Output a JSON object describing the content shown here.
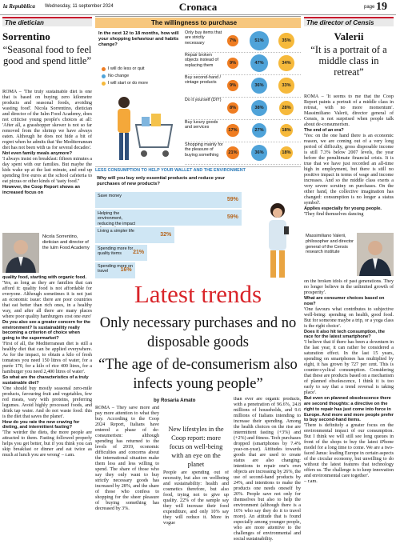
{
  "header": {
    "newspaper": "la Repubblica",
    "date": "Wednesday, 11 september 2024",
    "section": "Cronaca",
    "page_label": "page",
    "page_number": "19"
  },
  "left_interview": {
    "label": "The dietician",
    "name": "Sorrentino",
    "quote": "“Seasonal food to feel good and spend little”",
    "body_top": [
      {
        "p": "ROMA – 'The truly sustainable diet is one that is based on buying zero kilometre products and seasonal foods, avoiding wasting food'. Nicola Sorrentino, dietician and director of the Iulm Food Academy, does not criticise young people's choices at all: 'After all, a grasshopper skewer is not so far removed from the shrimp we have always eaten. Although he does not hide a bit of regret when he admits that 'the Mediterranean diet has not been with us for several decades'."
      },
      {
        "q": "Not even family meals anymore?"
      },
      {
        "p": "'I always insist on breakfast: fifteen minutes a day spent with our families. But maybe the kids wake up at the last minute, and end up spending five euros at the school cafeteria to eat pizzas or other kinds of 'tasty food.''"
      },
      {
        "q": "However, the Coop Report shows an increased focus on"
      }
    ],
    "photo_caption": "Nicola Sorrentino, dietician and director of the Iulm Food Academy",
    "body_bottom": [
      {
        "q": "quality food, starting with organic food."
      },
      {
        "p": "'Yes, as long as they are families that can afford it: quality food is not affordable for everyone. Although sometimes it is not just an economic issue: there are poor countries that eat better than rich ones, in a healthy way, and after all there are many places where poor quality hamburgers cost one euro'"
      },
      {
        "q": "Do you also see a greater concern for the environment? Is sustainability really becoming a criterion of choice when going to the supermarket?"
      },
      {
        "p": "'First of all, the Mediterranean diet is still a healthy diet that can be applied everywhere. As for the impact, to obtain a kilo of fresh tomatoes you need 150 litres of water, for a purée 170, for a kilo of rice 400 litres, for a hamburger you need 2,400 litres of water'."
      },
      {
        "q": "So what are the characteristics of a truly sustainable diet?"
      },
      {
        "p": "'One should buy mostly seasonal zero-mile products, favouring fruit and vegetables, few red meats, vary with proteins, preferring legumes. Avoid highly processed foods, and drink tap water. And do not waste food: this is the diet that saves the planet'."
      },
      {
        "q": "How do you rate the new craving for dieting, and intermittent fasting?"
      },
      {
        "p": "'The weirder the diets, the more people are attracted to them. Fasting followed properly helps you get better, but if you think you can skip breakfast or dinner and eat twice as much at lunch you are wrong' – r.am."
      }
    ]
  },
  "right_interview": {
    "label": "The director of Censis",
    "name": "Valerii",
    "quote": "“It is a portrait of a middle class in retreat”",
    "body_top": [
      {
        "p": "ROMA – 'It seems to me that the Coop Report paints a portrait of a middle class in retreat, with no more momentum'. Massimiliano Valerii, director general of Censis, is not surprised when people talk about de-consumerism."
      },
      {
        "q": "The end of an era?"
      },
      {
        "p": "'Yes: on the one hand there is an economic reason, we are coming out of a very long period of difficulty, gross disposable income is still 7.3% below 2007 levels, the year before the penultimate financial crisis. It is true that we have just recorded an all-time high in employment, but there is still no positive impact in terms of wage and income increases. And so the middle class exerts a very severe scrutiny on purchases. On the other hand, the collective imagination has changed: consumption is no longer a status symbol'."
      },
      {
        "q": "Applies especially for young people."
      },
      {
        "p": "'They find themselves dancing"
      }
    ],
    "photo_caption": "Massimiliano Valerii, philosopher and director general of the Censis research institute",
    "body_bottom": [
      {
        "p": "on the broken idols of past generations. They no longer believe in the unlimited growth of prosperity'."
      },
      {
        "q": "What are consumer choices based on now?"
      },
      {
        "p": "'One favours what contributes to subjective well-being: spending on health, good food. But for someone maybe a trip, or a yoga class is the right choice'."
      },
      {
        "q": "Does it also hit tech consumption, the race for the latest smartphone?"
      },
      {
        "p": "'I believe that if there has been a downturn in the last year, it can rather be considered a saturation effect. In the last 15 years, spending on smartphones has multiplied by eight, it has grown by 727 per cent. This is counter-cyclical consumption. Considering that these are products based on a mechanism of planned obsolescence, I think it is too early to say that a trend reversal is taking place'."
      },
      {
        "q": "But even on planned obsolescence there are second thoughts: a directive on the right to repair has just come into force in Europe. And more and more people prefer to buy second-hand items."
      },
      {
        "p": "'There is definitely a greater focus on the environmental impact of our consumption. But I think we will still see long queues in front of the shops to buy the latest iPhone model for a long time to come. We are a two-faced Janus: leading Europe in certain aspects of the circular economy, but unwilling to do without the latest features that technology offers us. The challenge is to keep innovation and environmental care together'."
      },
      {
        "p": "– r.am."
      }
    ]
  },
  "infographic": {
    "title": "The willingness to purchase",
    "question": "In the next 12 to 18 months, how will your shopping behaviour and habits change?",
    "legend": [
      "I will do less or quit",
      "No change",
      "I will start or do more"
    ],
    "colors": [
      "#ef7d22",
      "#4fa3d9",
      "#f6b93b"
    ],
    "rows": [
      {
        "label": "Only buy items that are strictly necessary",
        "values": [
          7,
          51,
          35
        ],
        "value_labels": [
          "7%",
          "51%",
          "35%"
        ]
      },
      {
        "label": "Repair broken objects instead of replacing them",
        "values": [
          9,
          47,
          34
        ],
        "value_labels": [
          "9%",
          "47%",
          "34%"
        ]
      },
      {
        "label": "Buy second-hand / vintage products",
        "values": [
          9,
          36,
          33
        ],
        "value_labels": [
          "9%",
          "36%",
          "33%"
        ]
      },
      {
        "label": "Do it yourself (DIY)",
        "values": [
          8,
          38,
          28
        ],
        "value_labels": [
          "8%",
          "38%",
          "28%"
        ]
      },
      {
        "label": "Buy luxury goods and services",
        "values": [
          17,
          27,
          18
        ],
        "value_labels": [
          "17%",
          "27%",
          "18%"
        ]
      },
      {
        "label": "Shopping mainly for the pleasure of buying something",
        "values": [
          21,
          36,
          18
        ],
        "value_labels": [
          "21%",
          "36%",
          "18%"
        ]
      }
    ],
    "caption": "LESS CONSUMPTION TO HELP YOUR WALLET AND THE ENVIRONMENT",
    "reasons": {
      "question": "Why will you buy only essential products and reduce your purchases of new products?",
      "color": "#cfe6f4",
      "bars": [
        {
          "label": "Save money",
          "value": 59,
          "value_label": "59%"
        },
        {
          "label": "Helping the environment, reducing the impact of my actions",
          "value": 59,
          "value_label": "59%"
        },
        {
          "label": "Living a simpler life",
          "value": 32,
          "value_label": "32%"
        },
        {
          "label": "Spending more for quality items",
          "value": 21,
          "value_label": "21%"
        },
        {
          "label": "Spending more on travel",
          "value": 16,
          "value_label": "16%"
        }
      ]
    }
  },
  "article": {
    "kicker": "Latest trends",
    "headline": "Only necessary purchases and no disposable goods",
    "subheadline": "“The age of de-consumerism also infects young people”",
    "byline": "by Rosaria Amato",
    "pull_quote": "New lifestyles in the Coop report: more focus on well-being with an eye on the planet",
    "columns": [
      "ROMA – They save more and pay more attention to what they buy. According to the Coop 2024 Report, Italians have entered a phase of de-consumerism: although spending has returned to the levels of 2019, economic difficulties and concerns about the international situation make them less and less willing to spend. The share of those who say they only want to buy strictly necessary goods has increased by 28%, and the share of those who confess to shopping for the sheer pleasure of buying something has decreased by 3%.",
      "People are spending out of necessity, but also on wellbeing and sustainability: health and cosmetics therefore, but also food, trying not to give up quality. 22% of the sample say they will increase their food expenditure, and only 10% say they will reduce it. More in vogue",
      "than ever are organic products, with a penetration of 96.6%, 24.8 millions of households, and 9.6 millions of Italians intending to increase their spending. Among the health choices on the rise are intermittent fasting (+3%) and (+2%) and fitness. Tech purchases dropped (smartphones by 7.4% year-on-year). Attitudes towards goods that are used to create status are also changing: intentions to repair one's own objects are increasing by 26%, the use of second-hand products by 24%, and intentions to make the products one needs oneself by 20%. People save not only for themselves but also to help the environment (although there is a 16% who say they do it to travel more). An attitude that is found especially among younger people, who are more attentive to the challenges of environmental and social sustainability."
    ]
  }
}
